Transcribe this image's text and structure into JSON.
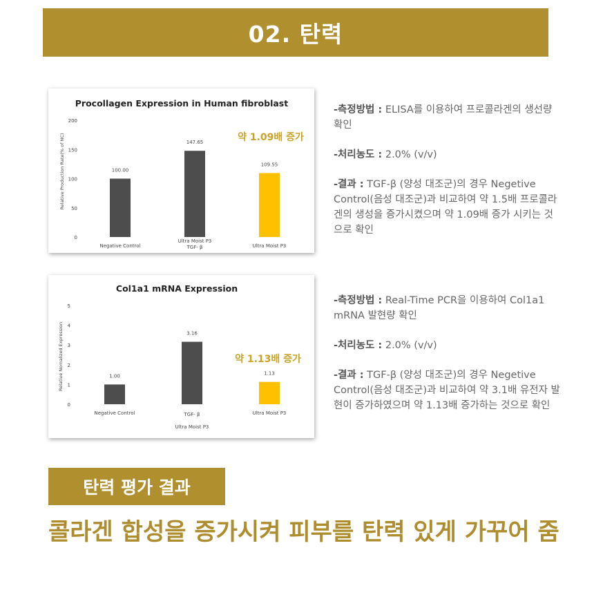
{
  "header": {
    "title": "02. 탄력"
  },
  "charts_ui": [
    {
      "callout": "약 1.09배 증가",
      "sublabel": "Ultra Moist P3"
    },
    {
      "callout": "약 1.13배 증가",
      "sublabel": "Ultra Moist P3"
    }
  ],
  "chart_data": [
    {
      "type": "bar",
      "title": "Procollagen Expression in Human fibroblast",
      "ylabel": "Relative Production Rate(% of NC)",
      "xlabel": "Ultra Moist P3",
      "categories": [
        "Negative Control",
        "TGF- β",
        "Ultra Moist P3"
      ],
      "values": [
        100.0,
        147.65,
        109.55
      ],
      "value_labels": [
        "100.00",
        "147.65",
        "109.55"
      ],
      "ylim": [
        0,
        200
      ],
      "yticks": [
        "0",
        "50",
        "100",
        "150",
        "200"
      ],
      "colors": [
        "#4d4d4d",
        "#4d4d4d",
        "#ffc000"
      ]
    },
    {
      "type": "bar",
      "title": "Col1a1 mRNA Expression",
      "ylabel": "Relative Nomalized Expression",
      "xlabel": "Ultra Moist P3",
      "categories": [
        "Negative Control",
        "TGF- β",
        "Ultra Moist P3"
      ],
      "values": [
        1.0,
        3.16,
        1.13
      ],
      "value_labels": [
        "1.00",
        "3.16",
        "1.13"
      ],
      "ylim": [
        0,
        5
      ],
      "yticks": [
        "0",
        "1",
        "2",
        "3",
        "4",
        "5"
      ],
      "colors": [
        "#4d4d4d",
        "#4d4d4d",
        "#ffc000"
      ]
    }
  ],
  "descriptions": [
    {
      "method_key": "-측정방법 :",
      "method_val": " ELISA를 이용하여 프로콜라겐의 생선량 확인",
      "conc_key": "-처리농도 :",
      "conc_val": " 2.0% (v/v)",
      "result_key": "-결과 :",
      "result_val": " TGF-β (양성 대조군)의 경우 Negetive Control(음성 대조군)과 비교하여 약 1.5배 프로콜라겐의 생성을 증가시켰으며 약 1.09배 증가 시키는 것으로 확인"
    },
    {
      "method_key": "-측정방법 :",
      "method_val": " Real-Time PCR을 이용하여 Col1a1 mRNA 발현량 확인",
      "conc_key": "-처리농도 :",
      "conc_val": " 2.0% (v/v)",
      "result_key": "-결과 :",
      "result_val": " TGF-β (양성 대조군)의 경우 Negetive Control(음성 대조군)과 비교하여 약 3.1배 유전자 발현이 증가하였으며 약 1.13배 증가하는 것으로 확인"
    }
  ],
  "evaluation": {
    "tag": "탄력 평가 결과",
    "conclusion": "콜라겐 합성을 증가시켜 피부를 탄력 있게 가꾸어 줌"
  }
}
